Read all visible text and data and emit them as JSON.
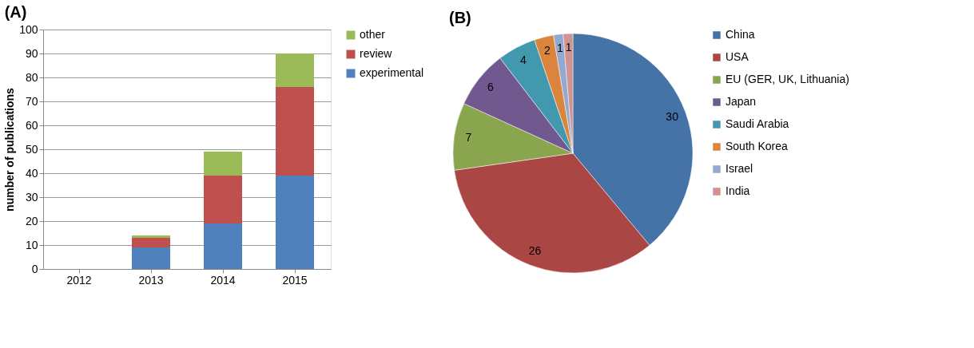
{
  "chart_data": [
    {
      "type": "bar",
      "title": "(A)",
      "ylabel": "number of publications",
      "categories": [
        "2012",
        "2013",
        "2014",
        "2015"
      ],
      "stacked": true,
      "series": [
        {
          "name": "experimental",
          "color": "#4f81bd",
          "values": [
            0,
            9,
            19,
            39
          ]
        },
        {
          "name": "review",
          "color": "#c0504d",
          "values": [
            0,
            4,
            20,
            37
          ]
        },
        {
          "name": "other",
          "color": "#9bbb59",
          "values": [
            0,
            1,
            10,
            14
          ]
        }
      ],
      "ylim": [
        0,
        100
      ],
      "yticks": [
        0,
        10,
        20,
        30,
        40,
        50,
        60,
        70,
        80,
        90,
        100
      ],
      "grid": "y",
      "legend": "right"
    },
    {
      "type": "pie",
      "title": "(B)",
      "categories": [
        "China",
        "USA",
        "EU (GER, UK, Lithuania)",
        "Japan",
        "Saudi Arabia",
        "South Korea",
        "Israel",
        "India"
      ],
      "values": [
        30,
        26,
        7,
        6,
        4,
        2,
        1,
        1
      ],
      "colors": [
        "#4572a7",
        "#aa4643",
        "#89a54e",
        "#71588f",
        "#4198af",
        "#db843d",
        "#93a9cf",
        "#d19392"
      ],
      "data_labels": true,
      "legend": "right"
    }
  ]
}
